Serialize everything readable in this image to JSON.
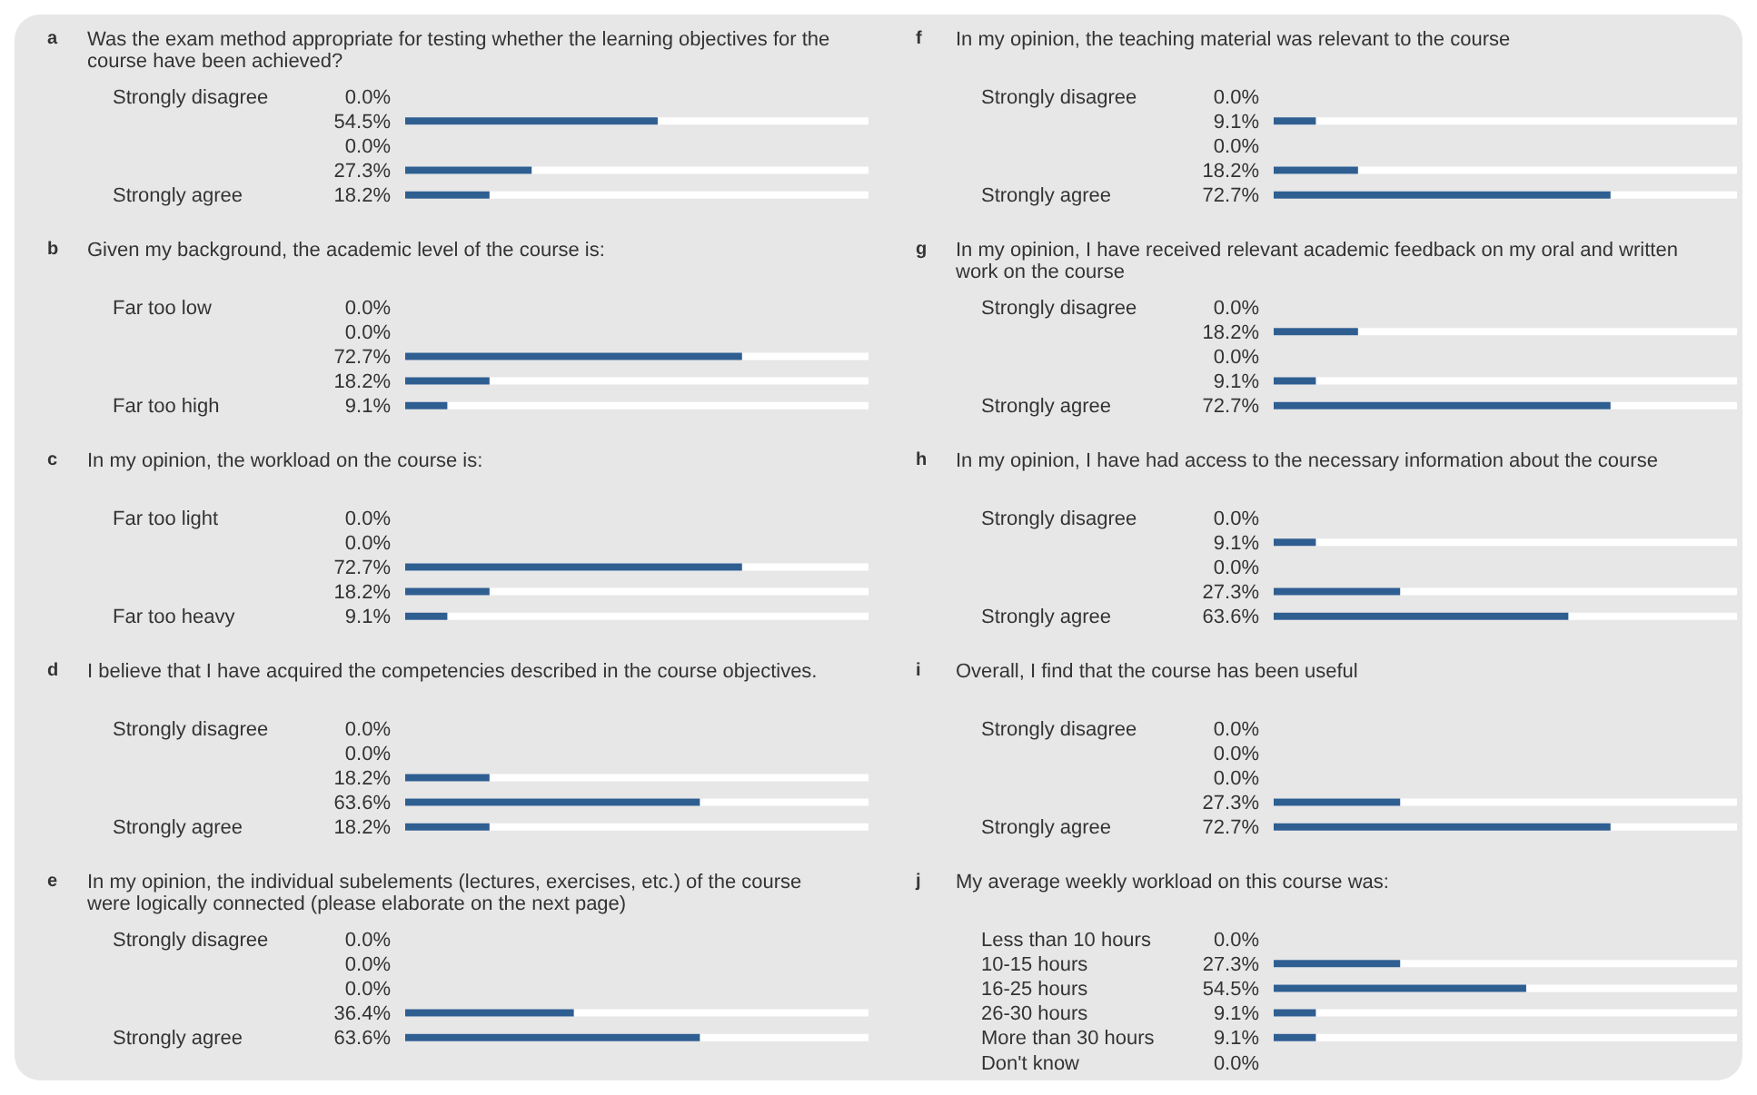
{
  "chart_data": [
    {
      "type": "bar",
      "orientation": "horizontal",
      "annotations": [
        "a"
      ],
      "title": "Was the exam method appropriate for testing whether the learning objectives for the course have been achieved?",
      "categories": [
        "Strongly disagree",
        null,
        null,
        null,
        "Strongly agree"
      ],
      "values": [
        0,
        54.5,
        0,
        27.3,
        18.2
      ],
      "value_labels": [
        "0.0%",
        "54.5%",
        "0.0%",
        "27.3%",
        "18.2%"
      ],
      "color": "#2f5e91",
      "xlim": [
        0,
        100
      ],
      "tick_labels": "y"
    },
    {
      "type": "bar",
      "orientation": "horizontal",
      "annotations": [
        "b"
      ],
      "title": "Given my background, the academic level of the course is:",
      "categories": [
        "Far too low",
        null,
        null,
        null,
        "Far too high"
      ],
      "values": [
        0,
        0,
        72.7,
        18.2,
        9.1
      ],
      "value_labels": [
        "0.0%",
        "0.0%",
        "72.7%",
        "18.2%",
        "9.1%"
      ],
      "color": "#2f5e91",
      "xlim": [
        0,
        100
      ],
      "tick_labels": "y"
    },
    {
      "type": "bar",
      "orientation": "horizontal",
      "annotations": [
        "c"
      ],
      "title": "In my opinion, the workload on the course is:",
      "categories": [
        "Far too light",
        null,
        null,
        null,
        "Far too heavy"
      ],
      "values": [
        0,
        0,
        72.7,
        18.2,
        9.1
      ],
      "value_labels": [
        "0.0%",
        "0.0%",
        "72.7%",
        "18.2%",
        "9.1%"
      ],
      "color": "#2f5e91",
      "xlim": [
        0,
        100
      ],
      "tick_labels": "y"
    },
    {
      "type": "bar",
      "orientation": "horizontal",
      "annotations": [
        "d"
      ],
      "title": "I believe that I have acquired the competencies described in the course objectives.",
      "categories": [
        "Strongly disagree",
        null,
        null,
        null,
        "Strongly agree"
      ],
      "values": [
        0,
        0,
        18.2,
        63.6,
        18.2
      ],
      "value_labels": [
        "0.0%",
        "0.0%",
        "18.2%",
        "63.6%",
        "18.2%"
      ],
      "color": "#2f5e91",
      "xlim": [
        0,
        100
      ],
      "tick_labels": "y"
    },
    {
      "type": "bar",
      "orientation": "horizontal",
      "annotations": [
        "e"
      ],
      "title": "In my opinion, the individual subelements (lectures, exercises, etc.) of the course were logically connected (please elaborate on the next page)",
      "categories": [
        "Strongly disagree",
        null,
        null,
        null,
        "Strongly agree"
      ],
      "values": [
        0,
        0,
        0,
        36.4,
        63.6
      ],
      "value_labels": [
        "0.0%",
        "0.0%",
        "0.0%",
        "36.4%",
        "63.6%"
      ],
      "color": "#2f5e91",
      "xlim": [
        0,
        100
      ],
      "tick_labels": "y"
    },
    {
      "type": "bar",
      "orientation": "horizontal",
      "annotations": [
        "f"
      ],
      "title": "In my opinion, the teaching material was relevant to the course",
      "categories": [
        "Strongly disagree",
        null,
        null,
        null,
        "Strongly agree"
      ],
      "values": [
        0,
        9.1,
        0,
        18.2,
        72.7
      ],
      "value_labels": [
        "0.0%",
        "9.1%",
        "0.0%",
        "18.2%",
        "72.7%"
      ],
      "color": "#2f5e91",
      "xlim": [
        0,
        100
      ],
      "tick_labels": "y"
    },
    {
      "type": "bar",
      "orientation": "horizontal",
      "annotations": [
        "g"
      ],
      "title": "In my opinion, I have received relevant academic feedback on my oral and written work on the course",
      "categories": [
        "Strongly disagree",
        null,
        null,
        null,
        "Strongly agree"
      ],
      "values": [
        0,
        18.2,
        0,
        9.1,
        72.7
      ],
      "value_labels": [
        "0.0%",
        "18.2%",
        "0.0%",
        "9.1%",
        "72.7%"
      ],
      "color": "#2f5e91",
      "xlim": [
        0,
        100
      ],
      "tick_labels": "y"
    },
    {
      "type": "bar",
      "orientation": "horizontal",
      "annotations": [
        "h"
      ],
      "title": "In my opinion, I have had access to the necessary information about the course",
      "categories": [
        "Strongly disagree",
        null,
        null,
        null,
        "Strongly agree"
      ],
      "values": [
        0,
        9.1,
        0,
        27.3,
        63.6
      ],
      "value_labels": [
        "0.0%",
        "9.1%",
        "0.0%",
        "27.3%",
        "63.6%"
      ],
      "color": "#2f5e91",
      "xlim": [
        0,
        100
      ],
      "tick_labels": "y"
    },
    {
      "type": "bar",
      "orientation": "horizontal",
      "annotations": [
        "i"
      ],
      "title": "Overall, I find that the course has been useful",
      "categories": [
        "Strongly disagree",
        null,
        null,
        null,
        "Strongly agree"
      ],
      "values": [
        0,
        0,
        0,
        27.3,
        72.7
      ],
      "value_labels": [
        "0.0%",
        "0.0%",
        "0.0%",
        "27.3%",
        "72.7%"
      ],
      "color": "#2f5e91",
      "xlim": [
        0,
        100
      ],
      "tick_labels": "y"
    },
    {
      "type": "bar",
      "orientation": "horizontal",
      "annotations": [
        "j"
      ],
      "title": "My average weekly workload on this course was:",
      "categories": [
        "Less than 10 hours",
        "10-15 hours",
        "16-25 hours",
        "26-30 hours",
        "More than 30 hours",
        "Don't know"
      ],
      "values": [
        0,
        27.3,
        54.5,
        9.1,
        9.1,
        0
      ],
      "value_labels": [
        "0.0%",
        "27.3%",
        "54.5%",
        "9.1%",
        "9.1%",
        "0.0%"
      ],
      "color": "#2f5e91",
      "xlim": [
        0,
        100
      ],
      "tick_labels": "y"
    }
  ]
}
